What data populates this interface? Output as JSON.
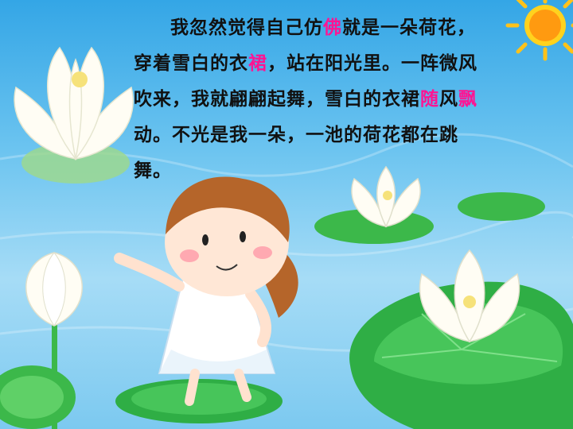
{
  "passage": {
    "line1": {
      "a": "我忽然觉得自己仿",
      "hl": "佛",
      "b": "就是一朵荷花，"
    },
    "line2": {
      "a": "穿着雪白的衣",
      "hl": "裙",
      "b": "，站在阳光里。一阵微风"
    },
    "line3": {
      "a": "吹来，我就翩翩起舞，雪白的衣裙",
      "hl1": "随",
      "mid": "风",
      "hl2": "飘"
    },
    "line4": "动。不光是我一朵，一池的荷花都在跳",
    "line5": "舞。"
  },
  "colors": {
    "highlight": "#ff1493",
    "text": "#111111",
    "sky_top": "#34a6e6",
    "leaf_green": "#3cb84a"
  },
  "icons": [
    "sun-icon",
    "lotus-flower-icon",
    "lotus-leaf-icon",
    "girl-illustration"
  ]
}
